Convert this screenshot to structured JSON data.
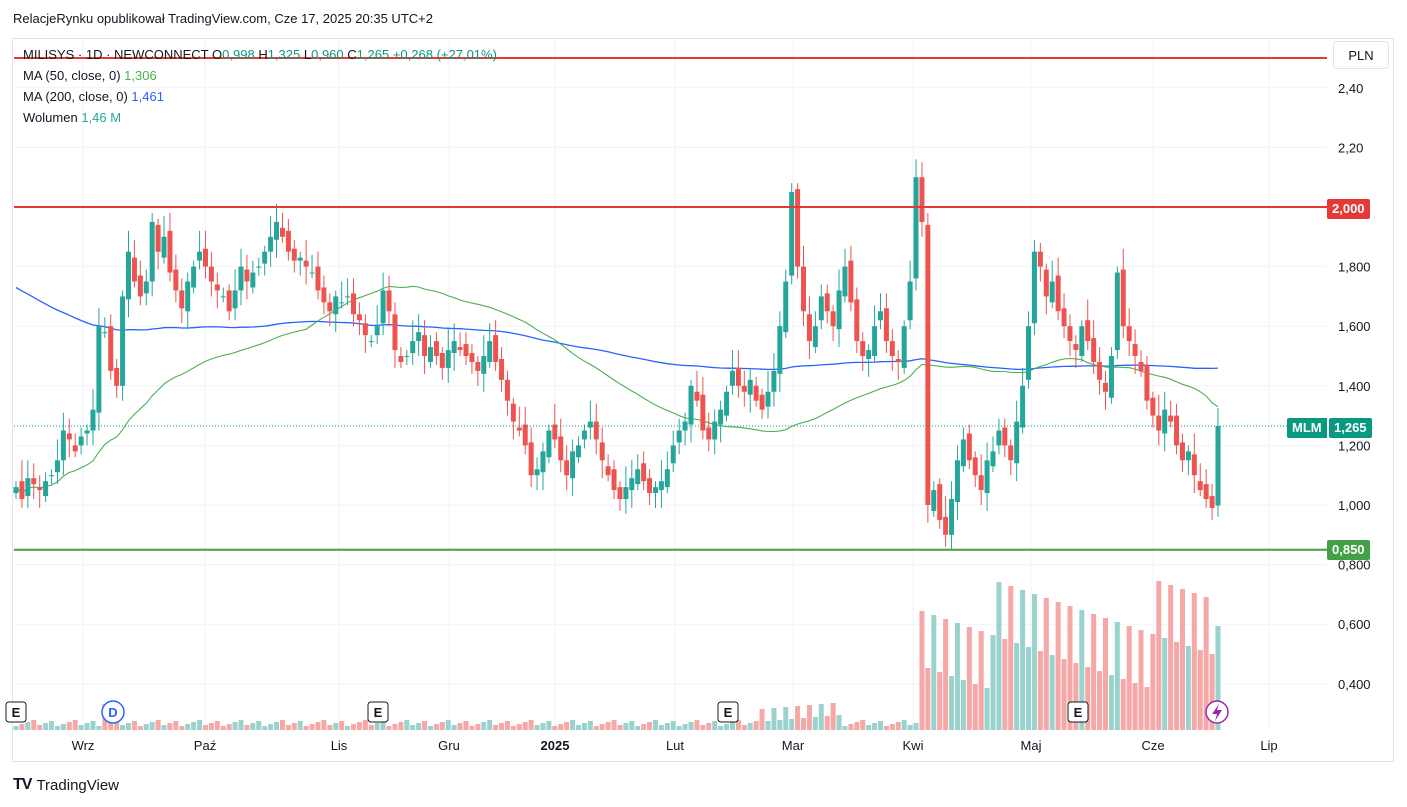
{
  "header": {
    "publisher_line": "RelacjeRynku opublikował TradingView.com, Cze 17, 2025 20:35 UTC+2"
  },
  "legend": {
    "symbol": "MILISYS · 1D · NEWCONNECT",
    "o_label": "O",
    "o_value": "0,998",
    "h_label": "H",
    "h_value": "1,325",
    "l_label": "L",
    "l_value": "0,960",
    "c_label": "C",
    "c_value": "1,265",
    "change": "+0,268 (+27,01%)",
    "ma50_label": "MA (50, close, 0)",
    "ma50_value": "1,306",
    "ma200_label": "MA (200, close, 0)",
    "ma200_value": "1,461",
    "volume_label": "Wolumen",
    "volume_value": "1,46 M"
  },
  "price_axis": {
    "currency": "PLN",
    "ticks": [
      "2,40",
      "2,20",
      "2,000",
      "1,800",
      "1,600",
      "1,400",
      "1,265",
      "1,200",
      "1,000",
      "0,850",
      "0,800",
      "0,600",
      "0,400"
    ]
  },
  "tags": {
    "symbol_tag": "MLM",
    "last_price": "1,265",
    "level_2000": "2,000",
    "level_0850": "0,850"
  },
  "time_axis": {
    "labels": [
      "Wrz",
      "Paź",
      "Lis",
      "Gru",
      "2025",
      "Lut",
      "Mar",
      "Kwi",
      "Maj",
      "Cze",
      "Lip"
    ]
  },
  "events": {
    "earnings_marker": "E",
    "dividend_marker": "D"
  },
  "footer": {
    "brand": "TradingView"
  },
  "colors": {
    "up": "#26a69a",
    "down": "#ef5350",
    "up_vol": "#9ad3cd",
    "down_vol": "#f5a8a6",
    "ma50": "#4caf50",
    "ma200": "#2962ff",
    "resistance": "#e53935",
    "support": "#43a047",
    "last_price_tag": "#089981"
  },
  "chart_data": {
    "type": "candlestick",
    "title": "MILISYS · 1D · NEWCONNECT",
    "currency": "PLN",
    "last": {
      "open": 0.998,
      "high": 1.325,
      "low": 0.96,
      "close": 1.265,
      "change": 0.268,
      "change_pct": 27.01
    },
    "ma50_last": 1.306,
    "ma200_last": 1.461,
    "volume_last": "1,46 M",
    "horizontal_levels": [
      2.5,
      2.0,
      0.85
    ],
    "y_range": [
      0.33,
      2.5
    ],
    "grid": true,
    "legend_position": "top-left",
    "months": [
      "Wrz",
      "Paź",
      "Lis",
      "Gru",
      "2025",
      "Lut",
      "Mar",
      "Kwi",
      "Maj",
      "Cze",
      "Lip"
    ],
    "closes": [
      1.06,
      1.02,
      1.09,
      1.07,
      1.05,
      1.08,
      1.1,
      1.15,
      1.25,
      1.22,
      1.18,
      1.23,
      1.25,
      1.32,
      1.6,
      1.58,
      1.45,
      1.4,
      1.7,
      1.85,
      1.75,
      1.7,
      1.75,
      1.95,
      1.85,
      1.9,
      1.78,
      1.72,
      1.66,
      1.75,
      1.8,
      1.85,
      1.8,
      1.75,
      1.72,
      1.7,
      1.65,
      1.72,
      1.8,
      1.75,
      1.78,
      1.8,
      1.85,
      1.9,
      1.95,
      1.9,
      1.85,
      1.82,
      1.83,
      1.8,
      1.78,
      1.72,
      1.68,
      1.65,
      1.7,
      1.68,
      1.7,
      1.64,
      1.62,
      1.57,
      1.55,
      1.6,
      1.72,
      1.65,
      1.52,
      1.48,
      1.5,
      1.55,
      1.58,
      1.5,
      1.53,
      1.5,
      1.46,
      1.52,
      1.55,
      1.52,
      1.5,
      1.48,
      1.45,
      1.5,
      1.55,
      1.48,
      1.42,
      1.35,
      1.28,
      1.25,
      1.2,
      1.1,
      1.12,
      1.18,
      1.25,
      1.22,
      1.15,
      1.1,
      1.18,
      1.2,
      1.25,
      1.28,
      1.22,
      1.15,
      1.1,
      1.05,
      1.02,
      1.06,
      1.09,
      1.12,
      1.08,
      1.04,
      1.06,
      1.08,
      1.12,
      1.2,
      1.25,
      1.28,
      1.4,
      1.35,
      1.25,
      1.22,
      1.28,
      1.32,
      1.38,
      1.45,
      1.4,
      1.38,
      1.42,
      1.35,
      1.32,
      1.38,
      1.45,
      1.6,
      1.75,
      2.05,
      1.8,
      1.65,
      1.55,
      1.6,
      1.7,
      1.65,
      1.6,
      1.72,
      1.8,
      1.68,
      1.55,
      1.5,
      1.52,
      1.6,
      1.65,
      1.55,
      1.5,
      1.48,
      1.6,
      1.75,
      2.1,
      1.95,
      1.0,
      1.05,
      0.95,
      0.9,
      1.02,
      1.15,
      1.22,
      1.15,
      1.1,
      1.05,
      1.15,
      1.18,
      1.25,
      1.2,
      1.15,
      1.28,
      1.4,
      1.6,
      1.85,
      1.8,
      1.7,
      1.75,
      1.65,
      1.6,
      1.55,
      1.52,
      1.6,
      1.55,
      1.48,
      1.42,
      1.38,
      1.5,
      1.78,
      1.6,
      1.55,
      1.5,
      1.45,
      1.35,
      1.3,
      1.25,
      1.32,
      1.28,
      1.2,
      1.15,
      1.18,
      1.1,
      1.05,
      1.02,
      0.99,
      1.265
    ]
  }
}
